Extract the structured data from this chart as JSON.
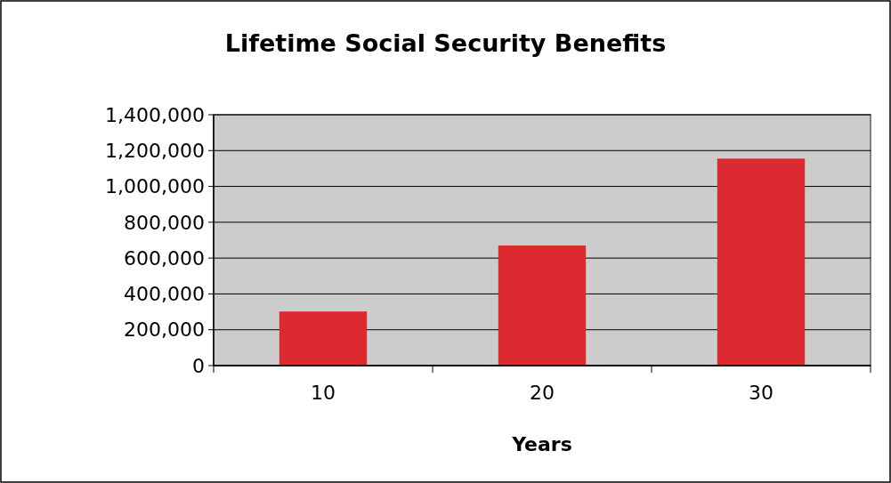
{
  "chart_data": {
    "type": "bar",
    "title": "Lifetime Social Security Benefits",
    "xlabel": "Years",
    "categories": [
      "10",
      "20",
      "30"
    ],
    "values": [
      302000,
      670000,
      1155000
    ],
    "color": "#dc2a30",
    "ylim": [
      0,
      1400000
    ],
    "yticks": [
      {
        "value": 0,
        "label": "0"
      },
      {
        "value": 200000,
        "label": "200,000"
      },
      {
        "value": 400000,
        "label": "400,000"
      },
      {
        "value": 600000,
        "label": "600,000"
      },
      {
        "value": 800000,
        "label": "800,000"
      },
      {
        "value": 1000000,
        "label": "1,000,000"
      },
      {
        "value": 1200000,
        "label": "1,200,000"
      },
      {
        "value": 1400000,
        "label": "1,400,000"
      }
    ],
    "grid": "y"
  }
}
